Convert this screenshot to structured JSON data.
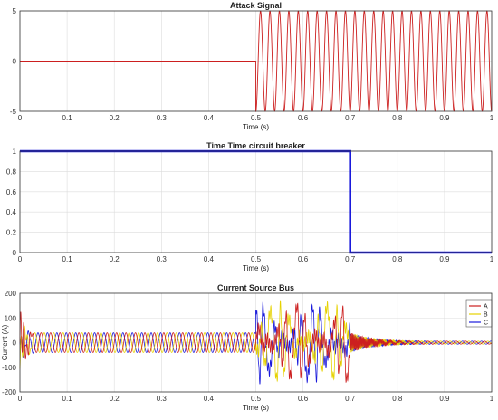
{
  "chart_data": [
    {
      "type": "line",
      "title": "Attack Signal",
      "xlabel": "Time (s)",
      "ylabel": "",
      "xlim": [
        0,
        1
      ],
      "ylim": [
        -5,
        5
      ],
      "xticks": [
        "0",
        "0.1",
        "0.2",
        "0.3",
        "0.4",
        "0.5",
        "0.6",
        "0.7",
        "0.8",
        "0.9",
        "1"
      ],
      "yticks": [
        "-5",
        "0",
        "5"
      ],
      "grid": true,
      "series": [
        {
          "color": "#cc1f1f",
          "description_values": {
            "x": [
              0,
              0.5,
              0.5,
              1
            ],
            "y": [
              0,
              0,
              5,
              5
            ]
          },
          "waveform": {
            "start": 0.5,
            "amplitude": 5,
            "frequency_hz": 50
          }
        }
      ]
    },
    {
      "type": "line",
      "title": "Time Time circuit breaker",
      "xlabel": "Time (s)",
      "ylabel": "",
      "xlim": [
        0,
        1
      ],
      "ylim": [
        0,
        1
      ],
      "xticks": [
        "0",
        "0.1",
        "0.2",
        "0.3",
        "0.4",
        "0.5",
        "0.6",
        "0.7",
        "0.8",
        "0.9",
        "1"
      ],
      "yticks": [
        "0",
        "0.2",
        "0.4",
        "0.6",
        "0.8",
        "1"
      ],
      "grid": true,
      "series": [
        {
          "color": "#1a1adb",
          "x": [
            0,
            0.7,
            0.7,
            1
          ],
          "y": [
            1,
            1,
            0,
            0
          ]
        }
      ]
    },
    {
      "type": "line",
      "title": "Current Source Bus",
      "xlabel": "Time (s)",
      "ylabel": "Current (A)",
      "xlim": [
        0,
        1
      ],
      "ylim": [
        -200,
        200
      ],
      "xticks": [
        "0",
        "0.1",
        "0.2",
        "0.3",
        "0.4",
        "0.5",
        "0.6",
        "0.7",
        "0.8",
        "0.9",
        "1"
      ],
      "yticks": [
        "-200",
        "-100",
        "0",
        "100",
        "200"
      ],
      "grid": true,
      "legend": "top-right",
      "series": [
        {
          "name": "A",
          "color": "#cc1f1f",
          "phase_deg": 0
        },
        {
          "name": "B",
          "color": "#e6d200",
          "phase_deg": -120
        },
        {
          "name": "C",
          "color": "#1a1adb",
          "phase_deg": 120
        }
      ],
      "steady_amplitude": 40,
      "attack_interval": [
        0.5,
        0.7
      ],
      "attack_peak": 150,
      "frequency_hz": 50
    }
  ]
}
